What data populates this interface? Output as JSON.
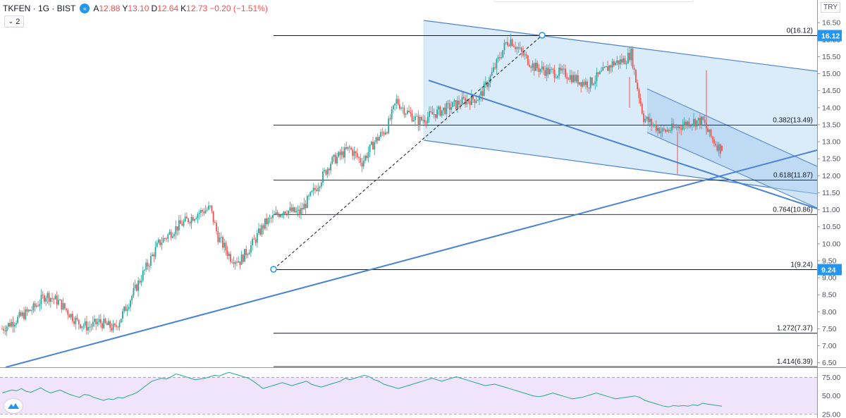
{
  "header": {
    "symbol": "TKFEN · 1G · BIST",
    "o_label": "A",
    "o_value": "12.88",
    "h_label": "Y",
    "h_value": "13.10",
    "l_label": "D",
    "l_value": "12.64",
    "c_label": "K",
    "c_value": "12.73",
    "change": "−0.20 (−1.51%)",
    "collapse_label": "2",
    "toggle_icon": "double-chevron-left-icon"
  },
  "currency": "TRY",
  "colors": {
    "up": "#26a69a",
    "down": "#ef5350",
    "trend": "#4a82d4",
    "fill": "#cde5f8",
    "rsi_bg": "#f0e4fb",
    "rsi_line": "#26a69a",
    "accent": "#2196f3"
  },
  "chart_data": [
    {
      "type": "candlestick",
      "title": "TKFEN · 1G · BIST",
      "y_axis": {
        "ticks": [
          "6.50",
          "7.00",
          "7.50",
          "8.00",
          "8.50",
          "9.00",
          "9.50",
          "10.00",
          "10.50",
          "11.00",
          "11.50",
          "12.00",
          "12.50",
          "13.00",
          "13.50",
          "14.00",
          "14.50",
          "15.00",
          "15.50",
          "16.00",
          "16.50"
        ],
        "range": [
          6.3,
          16.8
        ]
      },
      "price_badges": [
        "16.12",
        "9.24"
      ],
      "fibonacci": [
        {
          "label": "0(16.12)",
          "value": 16.12
        },
        {
          "label": "0.382(13.49)",
          "value": 13.49
        },
        {
          "label": "0.618(11.87)",
          "value": 11.87
        },
        {
          "label": "0.764(10.86)",
          "value": 10.86
        },
        {
          "label": "1(9.24)",
          "value": 9.24
        },
        {
          "label": "1.272(7.37)",
          "value": 7.37
        },
        {
          "label": "1.414(6.39)",
          "value": 6.39
        }
      ],
      "trend_path": [
        [
          0,
          7.5
        ],
        [
          10,
          7.8
        ],
        [
          20,
          8.1
        ],
        [
          28,
          8.5
        ],
        [
          36,
          8.3
        ],
        [
          48,
          7.7
        ],
        [
          55,
          7.55
        ],
        [
          62,
          7.7
        ],
        [
          72,
          7.5
        ],
        [
          80,
          8.2
        ],
        [
          92,
          9.3
        ],
        [
          100,
          10.0
        ],
        [
          112,
          10.5
        ],
        [
          125,
          10.9
        ],
        [
          133,
          11.05
        ],
        [
          138,
          10.2
        ],
        [
          146,
          9.6
        ],
        [
          152,
          9.5
        ],
        [
          160,
          10.0
        ],
        [
          168,
          10.6
        ],
        [
          180,
          11.0
        ],
        [
          190,
          10.9
        ],
        [
          200,
          11.6
        ],
        [
          210,
          12.4
        ],
        [
          222,
          12.8
        ],
        [
          230,
          12.4
        ],
        [
          238,
          13.0
        ],
        [
          246,
          13.4
        ],
        [
          252,
          14.2
        ],
        [
          258,
          13.9
        ],
        [
          266,
          13.6
        ],
        [
          275,
          13.8
        ],
        [
          285,
          14.0
        ],
        [
          295,
          14.2
        ],
        [
          305,
          14.3
        ],
        [
          312,
          14.9
        ],
        [
          318,
          15.5
        ],
        [
          322,
          15.9
        ],
        [
          325,
          16.0
        ],
        [
          332,
          15.6
        ],
        [
          340,
          15.2
        ],
        [
          350,
          15.05
        ],
        [
          360,
          15.0
        ],
        [
          368,
          14.8
        ],
        [
          375,
          14.7
        ],
        [
          383,
          15.0
        ],
        [
          390,
          15.3
        ],
        [
          398,
          15.4
        ],
        [
          402,
          15.6
        ],
        [
          405,
          14.8
        ],
        [
          410,
          13.7
        ],
        [
          416,
          13.5
        ],
        [
          422,
          13.3
        ],
        [
          430,
          13.4
        ],
        [
          440,
          13.6
        ],
        [
          448,
          13.6
        ],
        [
          452,
          13.2
        ],
        [
          456,
          12.95
        ],
        [
          460,
          12.73
        ]
      ],
      "last_close": 12.73
    },
    {
      "type": "line",
      "title": "RSI",
      "y_axis": {
        "ticks": [
          "25.00",
          "50.00",
          "75.00"
        ],
        "range": [
          20,
          88
        ]
      },
      "band": [
        25,
        75
      ],
      "values": [
        54,
        56,
        58,
        57,
        60,
        56,
        55,
        58,
        61,
        57,
        54,
        56,
        58,
        55,
        52,
        50,
        48,
        52,
        51,
        48,
        46,
        44,
        46,
        45,
        48,
        47,
        50,
        52,
        55,
        60,
        65,
        70,
        72,
        74,
        73,
        76,
        80,
        78,
        76,
        74,
        72,
        73,
        74,
        76,
        78,
        77,
        80,
        82,
        80,
        78,
        76,
        74,
        70,
        65,
        60,
        62,
        64,
        66,
        68,
        66,
        64,
        66,
        68,
        70,
        66,
        64,
        62,
        64,
        66,
        68,
        70,
        74,
        72,
        74,
        76,
        78,
        76,
        72,
        70,
        66,
        64,
        62,
        60,
        62,
        64,
        66,
        68,
        70,
        72,
        74,
        72,
        70,
        72,
        74,
        76,
        74,
        72,
        70,
        68,
        66,
        64,
        65,
        66,
        64,
        62,
        60,
        58,
        56,
        54,
        52,
        50,
        49,
        50,
        52,
        54,
        52,
        50,
        48,
        46,
        47,
        48,
        50,
        52,
        54,
        52,
        50,
        48,
        46,
        47,
        48,
        49,
        50,
        48,
        44,
        42,
        40,
        38,
        36,
        35,
        37,
        36,
        37,
        36,
        38,
        37,
        40,
        39,
        38,
        37,
        36
      ]
    }
  ]
}
